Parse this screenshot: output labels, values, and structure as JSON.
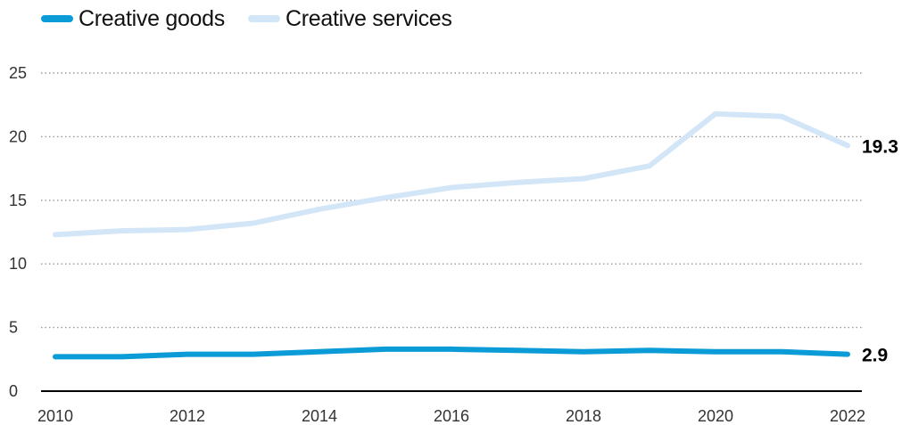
{
  "chart_data": {
    "type": "line",
    "title": "",
    "xlabel": "",
    "ylabel": "",
    "x": [
      2010,
      2011,
      2012,
      2013,
      2014,
      2015,
      2016,
      2017,
      2018,
      2019,
      2020,
      2021,
      2022
    ],
    "x_tick_labels": [
      "2010",
      "2012",
      "2014",
      "2016",
      "2018",
      "2020",
      "2022"
    ],
    "ylim": [
      0,
      25
    ],
    "y_tick_labels": [
      "0",
      "5",
      "10",
      "15",
      "20",
      "25"
    ],
    "grid": "horizontal dotted",
    "legend_position": "top-left",
    "series": [
      {
        "name": "Creative goods",
        "color": "#0b9bd6",
        "values": [
          2.7,
          2.7,
          2.9,
          2.9,
          3.1,
          3.3,
          3.3,
          3.2,
          3.1,
          3.2,
          3.1,
          3.1,
          2.9
        ],
        "end_label": "2.9"
      },
      {
        "name": "Creative services",
        "color": "#d3e6f7",
        "values": [
          12.3,
          12.6,
          12.7,
          13.2,
          14.3,
          15.2,
          16.0,
          16.4,
          16.7,
          17.7,
          21.8,
          21.6,
          19.3
        ],
        "end_label": "19.3"
      }
    ]
  }
}
